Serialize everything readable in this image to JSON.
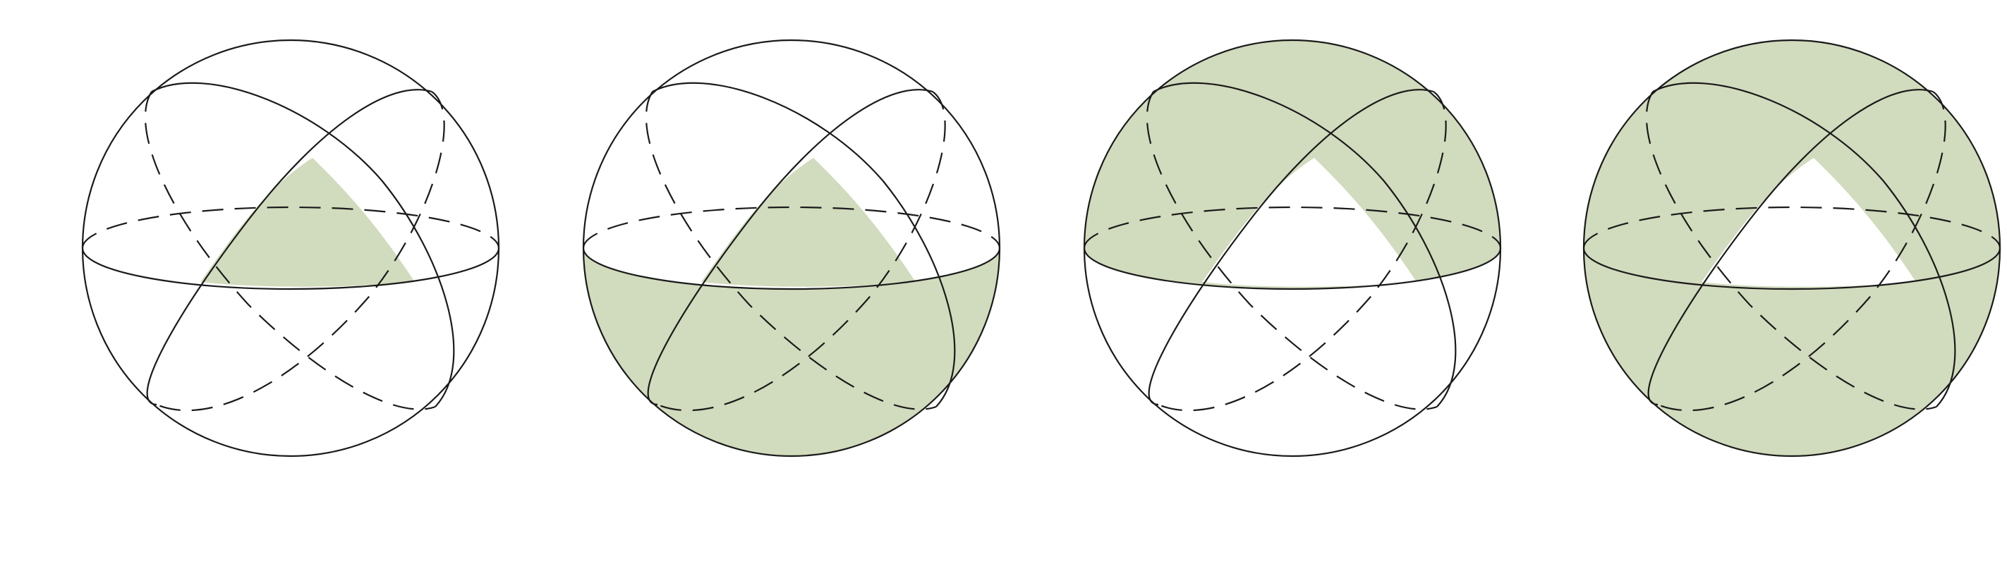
{
  "diagram": {
    "shade_color": "#d1dbbd",
    "line_color": "#1a1a1a",
    "background": "#ffffff",
    "panels": [
      {
        "name": "sphere-panel-1",
        "shading": "central-triangle"
      },
      {
        "name": "sphere-panel-2",
        "shading": "lower-hemisphere-plus-triangle"
      },
      {
        "name": "sphere-panel-3",
        "shading": "upper-hemisphere-minus-triangle"
      },
      {
        "name": "sphere-panel-4",
        "shading": "whole-sphere-minus-triangle"
      }
    ]
  }
}
